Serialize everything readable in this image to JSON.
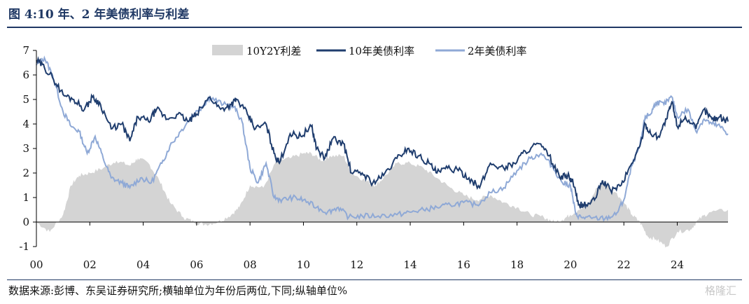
{
  "figure": {
    "title": "图 4:10 年、2 年美债利率与利差",
    "source": "数据来源:彭博、东吴证券研究所;横轴单位为年份后两位,下同;纵轴单位%",
    "watermark": "格隆汇"
  },
  "chart_data": {
    "type": "line",
    "title": "",
    "xlabel": "",
    "ylabel": "",
    "xlim": [
      2000.0,
      2025.9
    ],
    "ylim": [
      -1,
      7
    ],
    "x_ticks": [
      "00",
      "02",
      "04",
      "06",
      "08",
      "10",
      "12",
      "14",
      "16",
      "18",
      "20",
      "22",
      "24"
    ],
    "y_ticks": [
      "-1",
      "0",
      "1",
      "2",
      "3",
      "4",
      "5",
      "6",
      "7"
    ],
    "grid": false,
    "legend_position": "top",
    "colors": {
      "spread": "#d4d4d4",
      "y10": "#1f3d6e",
      "y2": "#8fa9d6"
    },
    "series": [
      {
        "name": "10Y2Y利差",
        "kind": "area",
        "x": [
          2000.0,
          2000.5,
          2001.0,
          2001.3,
          2001.6,
          2002.0,
          2002.5,
          2003.0,
          2003.5,
          2003.8,
          2004.2,
          2004.6,
          2005.0,
          2005.5,
          2005.9,
          2006.3,
          2006.8,
          2007.3,
          2007.6,
          2008.0,
          2008.5,
          2009.0,
          2009.5,
          2010.0,
          2010.3,
          2010.7,
          2011.0,
          2011.5,
          2011.8,
          2012.3,
          2012.7,
          2013.0,
          2013.5,
          2014.0,
          2014.5,
          2015.0,
          2015.5,
          2016.0,
          2016.5,
          2017.0,
          2017.5,
          2018.0,
          2018.5,
          2019.0,
          2019.4,
          2019.7,
          2020.0,
          2020.3,
          2020.6,
          2021.0,
          2021.3,
          2021.7,
          2022.0,
          2022.3,
          2022.6,
          2022.9,
          2023.2,
          2023.6,
          2024.0,
          2024.5,
          2024.8,
          2025.2,
          2025.9
        ],
        "values": [
          0.0,
          -0.4,
          0.3,
          1.5,
          1.9,
          2.0,
          2.2,
          2.5,
          2.3,
          2.6,
          2.4,
          1.7,
          0.8,
          0.2,
          0.0,
          -0.1,
          0.0,
          0.3,
          0.6,
          1.5,
          1.4,
          2.5,
          2.6,
          2.8,
          2.8,
          2.5,
          2.7,
          2.7,
          2.0,
          1.7,
          1.5,
          1.8,
          2.4,
          2.4,
          2.2,
          1.8,
          1.4,
          1.1,
          0.9,
          1.1,
          0.8,
          0.6,
          0.3,
          0.2,
          0.0,
          0.1,
          0.3,
          0.5,
          0.6,
          1.4,
          1.6,
          1.2,
          0.8,
          0.3,
          0.0,
          -0.6,
          -0.7,
          -1.0,
          -0.4,
          -0.3,
          0.1,
          0.4,
          0.5
        ]
      },
      {
        "name": "10年美债利率",
        "kind": "line",
        "x": [
          2000.0,
          2000.3,
          2000.6,
          2001.0,
          2001.4,
          2001.8,
          2002.1,
          2002.4,
          2002.8,
          2003.2,
          2003.5,
          2003.8,
          2004.2,
          2004.5,
          2004.9,
          2005.3,
          2005.7,
          2006.0,
          2006.5,
          2006.9,
          2007.3,
          2007.5,
          2007.9,
          2008.2,
          2008.6,
          2008.9,
          2009.1,
          2009.5,
          2009.9,
          2010.3,
          2010.5,
          2010.8,
          2011.1,
          2011.5,
          2011.8,
          2012.2,
          2012.6,
          2013.0,
          2013.5,
          2013.9,
          2014.3,
          2014.7,
          2015.0,
          2015.4,
          2015.8,
          2016.2,
          2016.6,
          2017.0,
          2017.5,
          2017.9,
          2018.3,
          2018.8,
          2019.2,
          2019.6,
          2019.9,
          2020.1,
          2020.3,
          2020.6,
          2020.9,
          2021.2,
          2021.5,
          2021.9,
          2022.3,
          2022.6,
          2022.8,
          2023.0,
          2023.3,
          2023.6,
          2023.8,
          2024.0,
          2024.3,
          2024.7,
          2025.0,
          2025.3,
          2025.6,
          2025.9
        ],
        "values": [
          6.6,
          6.3,
          5.9,
          5.2,
          5.0,
          4.6,
          5.1,
          4.8,
          3.8,
          4.0,
          3.3,
          4.3,
          4.1,
          4.6,
          4.2,
          4.4,
          4.1,
          4.4,
          5.1,
          4.6,
          4.8,
          5.0,
          4.4,
          3.8,
          4.0,
          2.8,
          2.4,
          3.6,
          3.5,
          3.9,
          3.0,
          2.6,
          3.4,
          3.2,
          2.0,
          2.0,
          1.6,
          1.9,
          2.6,
          3.0,
          2.7,
          2.4,
          2.0,
          2.2,
          2.1,
          1.8,
          1.4,
          2.4,
          2.2,
          2.4,
          2.9,
          3.2,
          2.7,
          1.8,
          1.9,
          1.6,
          0.7,
          0.7,
          0.9,
          1.7,
          1.3,
          1.5,
          2.4,
          3.1,
          4.0,
          3.6,
          3.5,
          4.2,
          4.9,
          3.9,
          4.3,
          3.8,
          4.6,
          4.2,
          4.3,
          4.1
        ]
      },
      {
        "name": "2年美债利率",
        "kind": "line",
        "x": [
          2000.0,
          2000.3,
          2000.6,
          2001.0,
          2001.3,
          2001.6,
          2001.9,
          2002.2,
          2002.5,
          2002.8,
          2003.2,
          2003.5,
          2003.9,
          2004.3,
          2004.7,
          2005.0,
          2005.4,
          2005.8,
          2006.2,
          2006.5,
          2007.0,
          2007.4,
          2007.7,
          2008.0,
          2008.3,
          2008.6,
          2008.9,
          2009.2,
          2009.6,
          2010.0,
          2010.5,
          2010.9,
          2011.3,
          2011.7,
          2012.2,
          2012.8,
          2013.5,
          2014.0,
          2014.5,
          2015.0,
          2015.5,
          2016.0,
          2016.5,
          2017.0,
          2017.5,
          2018.0,
          2018.5,
          2018.9,
          2019.3,
          2019.7,
          2020.0,
          2020.2,
          2020.4,
          2020.8,
          2021.3,
          2021.7,
          2022.0,
          2022.3,
          2022.6,
          2022.8,
          2023.0,
          2023.2,
          2023.5,
          2023.8,
          2024.0,
          2024.4,
          2024.7,
          2025.0,
          2025.3,
          2025.6,
          2025.9
        ],
        "values": [
          6.4,
          6.7,
          6.0,
          4.5,
          3.9,
          3.7,
          2.8,
          3.5,
          2.6,
          1.8,
          1.6,
          1.4,
          1.8,
          1.6,
          2.4,
          3.1,
          3.7,
          4.3,
          4.7,
          5.1,
          4.8,
          4.7,
          4.1,
          2.2,
          1.6,
          2.4,
          1.0,
          0.9,
          1.0,
          0.9,
          0.6,
          0.4,
          0.6,
          0.2,
          0.25,
          0.25,
          0.3,
          0.4,
          0.5,
          0.6,
          0.7,
          0.8,
          0.7,
          1.2,
          1.4,
          2.1,
          2.6,
          2.8,
          2.3,
          1.6,
          1.5,
          0.3,
          0.2,
          0.15,
          0.15,
          0.3,
          0.9,
          2.3,
          3.1,
          4.3,
          4.4,
          4.9,
          4.8,
          5.1,
          4.3,
          4.6,
          3.7,
          4.2,
          4.0,
          3.9,
          3.6
        ]
      }
    ]
  }
}
